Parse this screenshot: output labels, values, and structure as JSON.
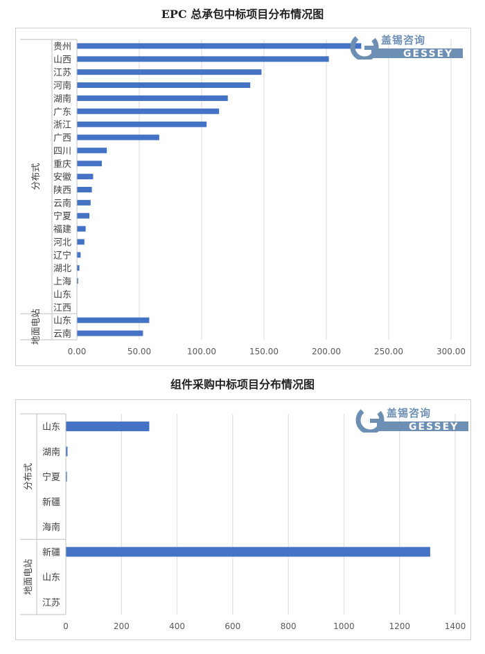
{
  "charts": [
    {
      "id": "epc",
      "title": "EPC 总承包中标项目分布情况图",
      "logo": {
        "cn": "盖锡咨询",
        "en": "GESSEY"
      },
      "chart_data": {
        "type": "bar",
        "orientation": "horizontal",
        "title": "EPC 总承包中标项目分布情况图",
        "groups": [
          {
            "name": "分布式",
            "categories": [
              "贵州",
              "山西",
              "江苏",
              "河南",
              "湖南",
              "广东",
              "浙江",
              "广西",
              "四川",
              "重庆",
              "安徽",
              "陕西",
              "云南",
              "宁夏",
              "福建",
              "河北",
              "辽宁",
              "湖北",
              "上海",
              "山东",
              "江西"
            ],
            "values": [
              228,
              202,
              148,
              139,
              121,
              114,
              104,
              66,
              24,
              20,
              13,
              12,
              11,
              10,
              7,
              6,
              3,
              2,
              1,
              0,
              0
            ]
          },
          {
            "name": "地面电站",
            "categories": [
              "山东",
              "云南"
            ],
            "values": [
              58,
              53
            ]
          }
        ],
        "xlim": [
          0,
          300
        ],
        "xticks": [
          "0.00",
          "50.00",
          "100.00",
          "150.00",
          "200.00",
          "250.00",
          "300.00"
        ],
        "bar_color": "#4472c4",
        "grid": true
      }
    },
    {
      "id": "module",
      "title": "组件采购中标项目分布情况图",
      "logo": {
        "cn": "盖锡咨询",
        "en": "GESSEY"
      },
      "chart_data": {
        "type": "bar",
        "orientation": "horizontal",
        "title": "组件采购中标项目分布情况图",
        "groups": [
          {
            "name": "分布式",
            "categories": [
              "山东",
              "湖南",
              "宁夏",
              "新疆",
              "海南"
            ],
            "values": [
              300,
              6,
              4,
              0,
              0
            ]
          },
          {
            "name": "地面电站",
            "categories": [
              "新疆",
              "山东",
              "江苏"
            ],
            "values": [
              1310,
              0,
              0
            ]
          }
        ],
        "xlim": [
          0,
          1400
        ],
        "xticks": [
          "0",
          "200",
          "400",
          "600",
          "800",
          "1000",
          "1200",
          "1400"
        ],
        "bar_color": "#4472c4",
        "grid": true
      }
    }
  ]
}
